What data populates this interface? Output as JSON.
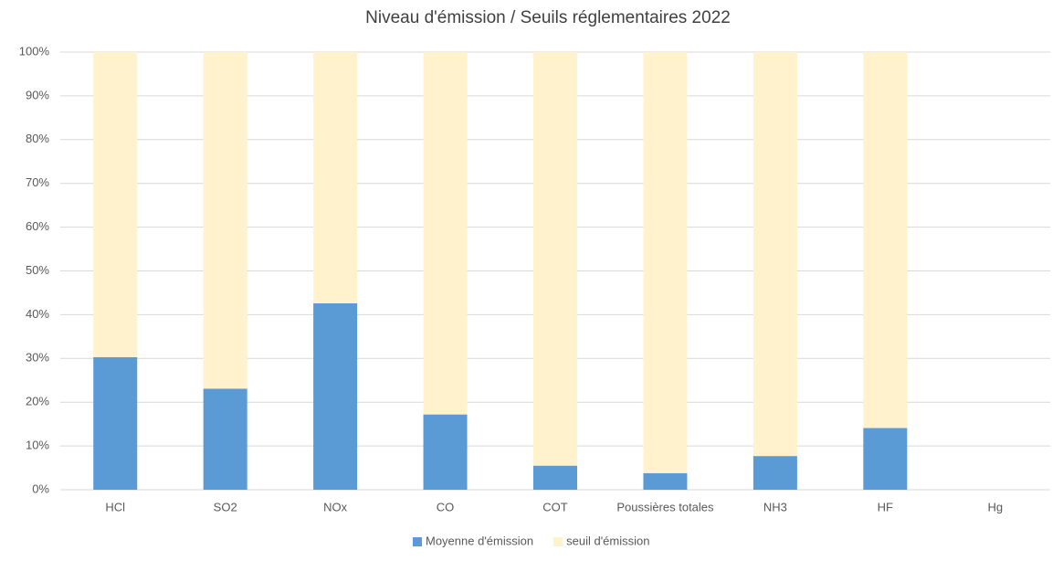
{
  "chart_data": {
    "type": "stacked_bar",
    "title": "Niveau d'émission / Seuils réglementaires 2022",
    "categories": [
      "HCl",
      "SO2",
      "NOx",
      "CO",
      "COT",
      "Poussières totales",
      "NH3",
      "HF",
      "Hg"
    ],
    "series": [
      {
        "name": "Moyenne d'émission",
        "color": "#5b9bd5",
        "values": [
          30.3,
          23.1,
          42.6,
          17.2,
          5.5,
          3.8,
          7.7,
          14.1,
          null
        ]
      },
      {
        "name": "seuil d'émission",
        "color": "#fff2cc",
        "values": [
          69.7,
          76.9,
          57.4,
          82.8,
          94.5,
          96.2,
          92.3,
          85.9,
          null
        ]
      }
    ],
    "ylim": [
      0,
      100
    ],
    "yticks": [
      {
        "value": 0,
        "label": "0%"
      },
      {
        "value": 10,
        "label": "10%"
      },
      {
        "value": 20,
        "label": "20%"
      },
      {
        "value": 30,
        "label": "30%"
      },
      {
        "value": 40,
        "label": "40%"
      },
      {
        "value": 50,
        "label": "50%"
      },
      {
        "value": 60,
        "label": "60%"
      },
      {
        "value": 70,
        "label": "70%"
      },
      {
        "value": 80,
        "label": "80%"
      },
      {
        "value": 90,
        "label": "90%"
      },
      {
        "value": 100,
        "label": "100%"
      }
    ],
    "grid": true,
    "legend": "bottom"
  }
}
